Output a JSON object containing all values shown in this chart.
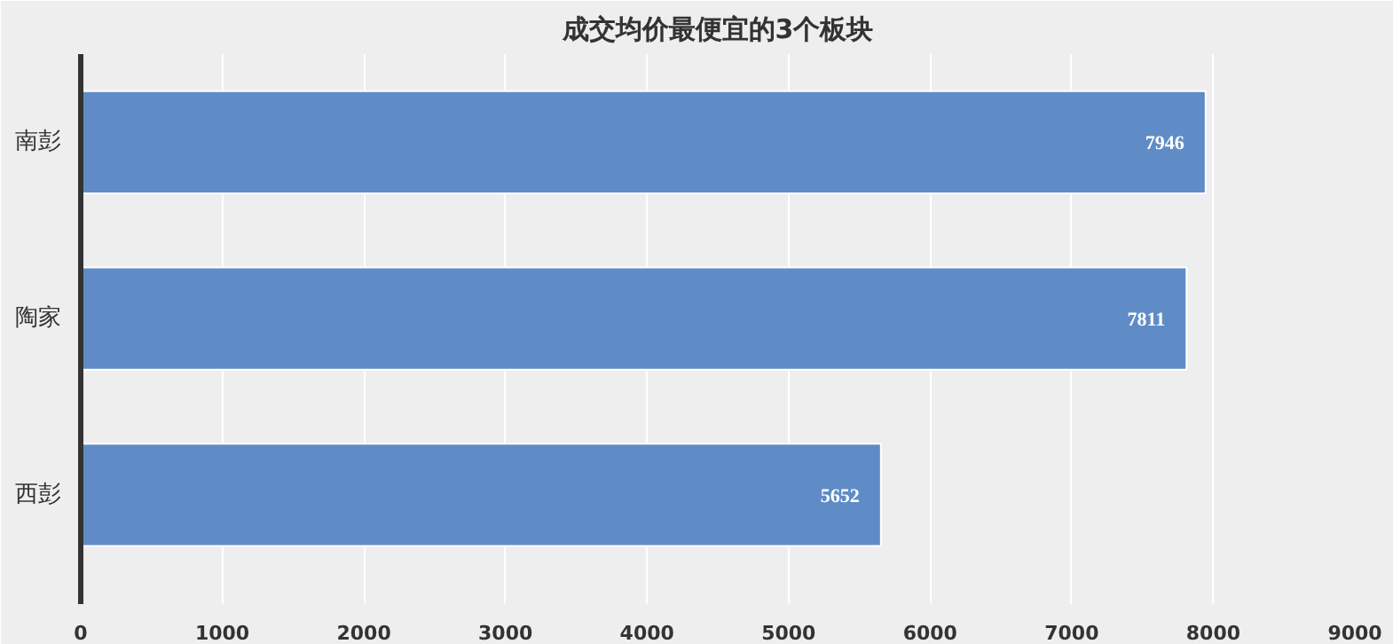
{
  "chart_data": {
    "type": "bar",
    "orientation": "horizontal",
    "title": "成交均价最便宜的3个板块",
    "categories": [
      "南彭",
      "陶家",
      "西彭"
    ],
    "values": [
      7946,
      7811,
      5652
    ],
    "color": "#5f8cc6",
    "xlim": [
      0,
      9000
    ],
    "xticks": [
      0,
      1000,
      2000,
      3000,
      4000,
      5000,
      6000,
      7000,
      8000,
      9000
    ],
    "grid": "x",
    "data_labels": true
  }
}
